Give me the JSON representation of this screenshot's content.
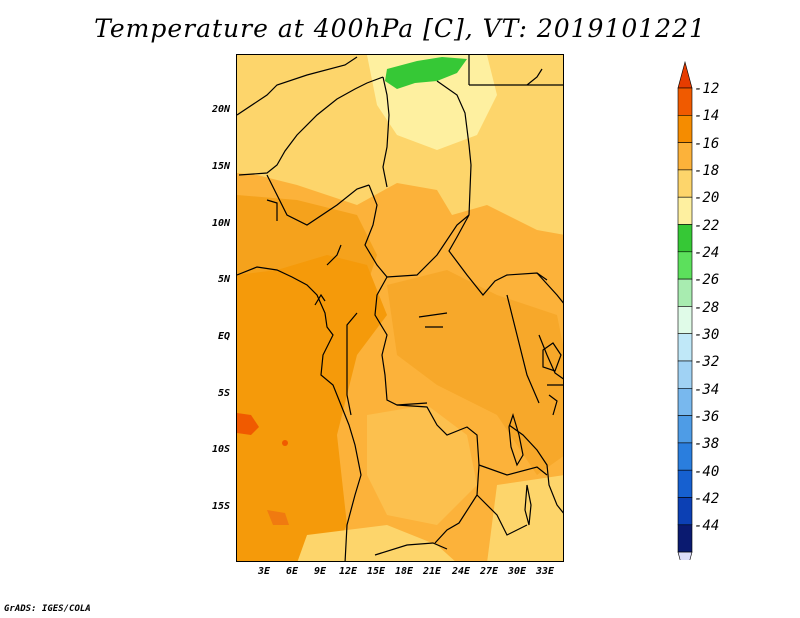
{
  "title": "Temperature at 400hPa [C], VT: 2019101221",
  "credit": "GrADS: IGES/COLA",
  "map": {
    "lat_ticks": [
      "20N",
      "15N",
      "10N",
      "5N",
      "EQ",
      "5S",
      "10S",
      "15S"
    ],
    "lon_ticks": [
      "3E",
      "6E",
      "9E",
      "12E",
      "15E",
      "18E",
      "21E",
      "24E",
      "27E",
      "30E",
      "33E"
    ]
  },
  "colorbar": {
    "labels": [
      "-12",
      "-14",
      "-16",
      "-18",
      "-20",
      "-22",
      "-24",
      "-26",
      "-28",
      "-30",
      "-32",
      "-34",
      "-36",
      "-38",
      "-40",
      "-42",
      "-44"
    ],
    "colors": [
      "#f05a00",
      "#f58c00",
      "#fcb23a",
      "#fdd56b",
      "#fef0a0",
      "#36c836",
      "#5ce05c",
      "#a8ecb0",
      "#e0fbe8",
      "#c0e8f8",
      "#a0d2f4",
      "#78b8ee",
      "#4e9ce6",
      "#2a7ede",
      "#1660d0",
      "#0c40b4",
      "#0a1a70"
    ],
    "top_arrow_color": "#e63c00",
    "bottom_arrow_color": "#dcdcf8"
  }
}
